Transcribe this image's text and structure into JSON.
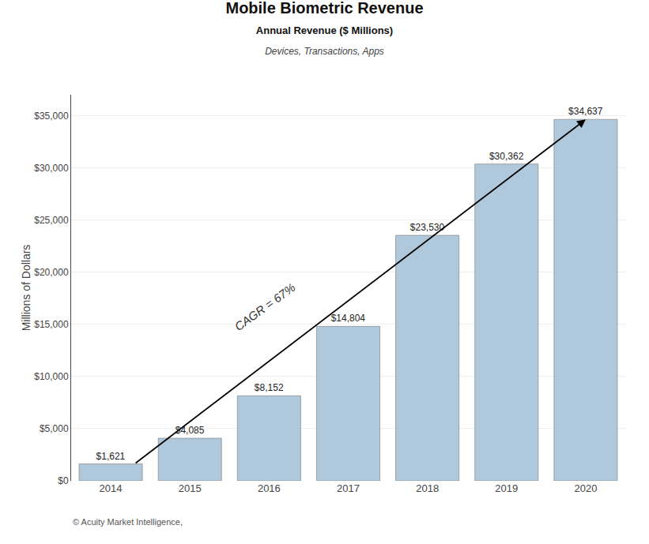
{
  "chart_data": {
    "type": "bar",
    "title": "Mobile Biometric Revenue",
    "subtitle": [
      "Annual Revenue ($ Millions)",
      "Devices, Transactions, Apps"
    ],
    "ylabel": "Millions of Dollars",
    "categories": [
      "2014",
      "2015",
      "2016",
      "2017",
      "2018",
      "2019",
      "2020"
    ],
    "values": [
      1621,
      4085,
      8152,
      14804,
      23530,
      30362,
      34637
    ],
    "value_labels": [
      "$1,621",
      "$4,085",
      "$8,152",
      "$14,804",
      "$23,530",
      "$30,362",
      "$34,637"
    ],
    "data_labels": true,
    "color": "#b0c8dc",
    "ylim": [
      0,
      37000
    ],
    "yticks": [
      {
        "value": 0,
        "label": "$0"
      },
      {
        "value": 5000,
        "label": "$5,000"
      },
      {
        "value": 10000,
        "label": "$10,000"
      },
      {
        "value": 15000,
        "label": "$15,000"
      },
      {
        "value": 20000,
        "label": "$20,000"
      },
      {
        "value": 25000,
        "label": "$25,000"
      },
      {
        "value": 30000,
        "label": "$30,000"
      },
      {
        "value": 35000,
        "label": "$35,000"
      }
    ],
    "grid": true,
    "annotations": [
      "CAGR = 67%"
    ],
    "footnote": "© Acuity Market Intelligence,"
  }
}
